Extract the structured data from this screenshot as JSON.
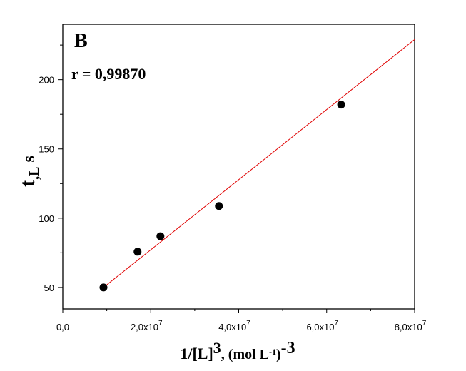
{
  "chart_data": {
    "type": "scatter",
    "panel_label": "B",
    "annotation": "r = 0,99870",
    "xlabel": "1/[L]3, (mol L-1)-3",
    "xlabel_parts": {
      "base": "1/[L]",
      "sup1": "3",
      "mid": ", (mol L",
      "sup2": "-1",
      "close": ")",
      "sup3": "-3"
    },
    "ylabel_parts": {
      "base": "t",
      "sub": ",L",
      "unit": " s"
    },
    "xlim": [
      0,
      80000000
    ],
    "ylim": [
      34.5,
      240
    ],
    "xticks": [
      {
        "v": 0,
        "label": "0,0"
      },
      {
        "v": 20000000,
        "label": "2,0x10",
        "exp": "7"
      },
      {
        "v": 40000000,
        "label": "4,0x10",
        "exp": "7"
      },
      {
        "v": 60000000,
        "label": "6,0x10",
        "exp": "7"
      },
      {
        "v": 80000000,
        "label": "8,0x10",
        "exp": "7"
      }
    ],
    "yticks": [
      50,
      100,
      150,
      200
    ],
    "points": [
      {
        "x": 9250000,
        "y": 50
      },
      {
        "x": 17000000,
        "y": 75.8
      },
      {
        "x": 22200000,
        "y": 87
      },
      {
        "x": 35500000,
        "y": 108.8
      },
      {
        "x": 63300000,
        "y": 182
      }
    ],
    "fit_line": {
      "x": [
        9250000,
        80000000
      ],
      "y": [
        50,
        229
      ],
      "color": "#e00000"
    },
    "marker_color": "#000000"
  }
}
